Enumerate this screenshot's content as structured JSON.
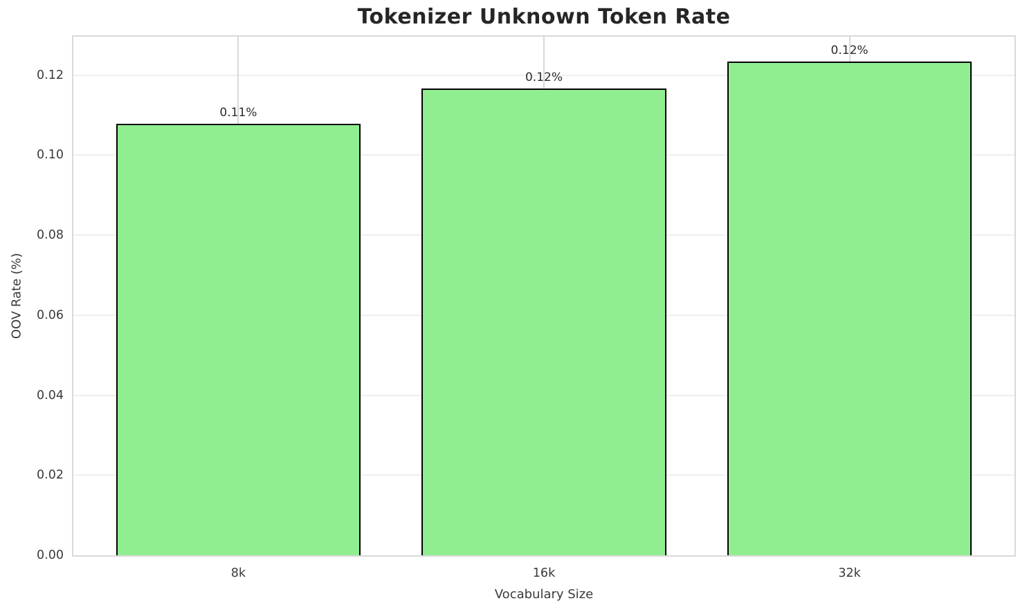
{
  "chart_data": {
    "type": "bar",
    "title": "Tokenizer Unknown Token Rate",
    "xlabel": "Vocabulary Size",
    "ylabel": "OOV Rate (%)",
    "categories": [
      "8k",
      "16k",
      "32k"
    ],
    "values": [
      0.1078,
      0.1167,
      0.1233
    ],
    "bar_labels": [
      "0.11%",
      "0.12%",
      "0.12%"
    ],
    "ytick_labels": [
      "0.00",
      "0.02",
      "0.04",
      "0.06",
      "0.08",
      "0.10",
      "0.12"
    ],
    "ytick_values": [
      0.0,
      0.02,
      0.04,
      0.06,
      0.08,
      0.1,
      0.12
    ],
    "ylim": [
      0,
      0.1296
    ],
    "grid": true,
    "legend_position": "none",
    "bar_color": "#90ee90",
    "bar_edge_color": "#000000",
    "background_color": "#ffffff"
  }
}
